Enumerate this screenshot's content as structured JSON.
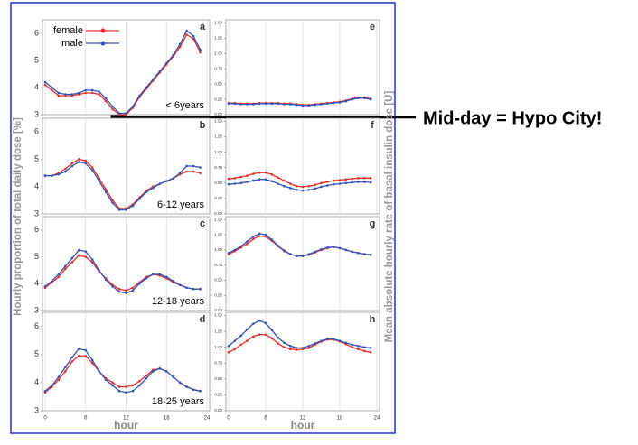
{
  "chart_data": [
    {
      "type": "line",
      "label": "a",
      "subtitle": "< 6years",
      "ylabel": "Hourly proportion of total daily dose [%]",
      "legend": "upper left",
      "x": [
        0,
        1,
        2,
        3,
        4,
        5,
        6,
        7,
        8,
        9,
        10,
        11,
        12,
        13,
        14,
        15,
        16,
        17,
        18,
        19,
        20,
        21,
        22,
        23
      ],
      "xlim": [
        0,
        24
      ],
      "xticks": [
        0,
        6,
        12,
        18,
        24
      ],
      "ylim": [
        3,
        6.5
      ],
      "yticks": [
        3,
        4,
        5,
        6
      ],
      "series": [
        {
          "name": "female",
          "color": "#e0312e",
          "values": [
            4.1,
            3.9,
            3.7,
            3.7,
            3.7,
            3.75,
            3.8,
            3.8,
            3.75,
            3.5,
            3.2,
            3.0,
            3.0,
            3.25,
            3.65,
            3.95,
            4.25,
            4.55,
            4.85,
            5.15,
            5.5,
            5.95,
            5.8,
            5.3
          ]
        },
        {
          "name": "male",
          "color": "#3454b4",
          "values": [
            4.2,
            4.0,
            3.8,
            3.75,
            3.75,
            3.8,
            3.9,
            3.9,
            3.85,
            3.6,
            3.3,
            3.05,
            3.05,
            3.3,
            3.7,
            4.0,
            4.3,
            4.6,
            4.9,
            5.2,
            5.6,
            6.1,
            5.9,
            5.4
          ]
        }
      ]
    },
    {
      "type": "line",
      "label": "b",
      "subtitle": "6-12 years",
      "x": [
        0,
        1,
        2,
        3,
        4,
        5,
        6,
        7,
        8,
        9,
        10,
        11,
        12,
        13,
        14,
        15,
        16,
        17,
        18,
        19,
        20,
        21,
        22,
        23
      ],
      "xlim": [
        0,
        24
      ],
      "xticks": [
        0,
        6,
        12,
        18,
        24
      ],
      "ylim": [
        3,
        6.5
      ],
      "yticks": [
        3,
        4,
        5,
        6
      ],
      "series": [
        {
          "color": "#e0312e",
          "values": [
            4.4,
            4.4,
            4.5,
            4.65,
            4.85,
            5.0,
            4.95,
            4.7,
            4.3,
            3.9,
            3.5,
            3.2,
            3.2,
            3.35,
            3.6,
            3.85,
            4.0,
            4.1,
            4.2,
            4.3,
            4.45,
            4.55,
            4.55,
            4.5
          ]
        },
        {
          "color": "#3454b4",
          "values": [
            4.4,
            4.4,
            4.45,
            4.55,
            4.75,
            4.9,
            4.85,
            4.6,
            4.2,
            3.8,
            3.4,
            3.15,
            3.15,
            3.3,
            3.55,
            3.8,
            3.95,
            4.1,
            4.2,
            4.3,
            4.5,
            4.75,
            4.75,
            4.7
          ]
        }
      ]
    },
    {
      "type": "line",
      "label": "c",
      "subtitle": "12-18 years",
      "x": [
        0,
        1,
        2,
        3,
        4,
        5,
        6,
        7,
        8,
        9,
        10,
        11,
        12,
        13,
        14,
        15,
        16,
        17,
        18,
        19,
        20,
        21,
        22,
        23
      ],
      "xlim": [
        0,
        24
      ],
      "xticks": [
        0,
        6,
        12,
        18,
        24
      ],
      "ylim": [
        3,
        6.5
      ],
      "yticks": [
        3,
        4,
        5,
        6
      ],
      "series": [
        {
          "color": "#e0312e",
          "values": [
            3.85,
            4.05,
            4.25,
            4.55,
            4.8,
            5.05,
            5.0,
            4.8,
            4.45,
            4.2,
            3.95,
            3.8,
            3.75,
            3.85,
            4.05,
            4.25,
            4.35,
            4.3,
            4.2,
            4.05,
            3.95,
            3.85,
            3.8,
            3.8
          ]
        },
        {
          "color": "#3454b4",
          "values": [
            3.9,
            4.1,
            4.35,
            4.65,
            4.95,
            5.25,
            5.2,
            4.9,
            4.5,
            4.15,
            3.9,
            3.7,
            3.65,
            3.75,
            4.0,
            4.2,
            4.35,
            4.35,
            4.25,
            4.1,
            3.95,
            3.85,
            3.8,
            3.8
          ]
        }
      ]
    },
    {
      "type": "line",
      "label": "d",
      "subtitle": "18-25 years",
      "xlabel": "hour",
      "x": [
        0,
        1,
        2,
        3,
        4,
        5,
        6,
        7,
        8,
        9,
        10,
        11,
        12,
        13,
        14,
        15,
        16,
        17,
        18,
        19,
        20,
        21,
        22,
        23
      ],
      "xlim": [
        0,
        24
      ],
      "xticks": [
        0,
        6,
        12,
        18,
        24
      ],
      "ylim": [
        3,
        6.5
      ],
      "yticks": [
        3,
        4,
        5,
        6
      ],
      "series": [
        {
          "color": "#e0312e",
          "values": [
            3.65,
            3.85,
            4.1,
            4.4,
            4.75,
            4.95,
            4.95,
            4.7,
            4.4,
            4.15,
            4.0,
            3.85,
            3.85,
            3.9,
            4.05,
            4.25,
            4.45,
            4.5,
            4.4,
            4.2,
            4.0,
            3.85,
            3.75,
            3.7
          ]
        },
        {
          "color": "#3454b4",
          "values": [
            3.7,
            3.9,
            4.2,
            4.55,
            4.9,
            5.2,
            5.15,
            4.8,
            4.4,
            4.1,
            3.9,
            3.7,
            3.65,
            3.7,
            3.9,
            4.15,
            4.4,
            4.5,
            4.4,
            4.2,
            4.0,
            3.85,
            3.75,
            3.7
          ]
        }
      ]
    },
    {
      "type": "line",
      "label": "e",
      "ylabel": "Mean absolute hourly rate of basal insulin dose [U]",
      "x": [
        0,
        1,
        2,
        3,
        4,
        5,
        6,
        7,
        8,
        9,
        10,
        11,
        12,
        13,
        14,
        15,
        16,
        17,
        18,
        19,
        20,
        21,
        22,
        23
      ],
      "xlim": [
        0,
        24
      ],
      "xticks": [
        0,
        6,
        12,
        18,
        24
      ],
      "ylim": [
        0,
        1.55
      ],
      "yticks": [
        {
          "value": 0,
          "label": "0.00"
        },
        {
          "value": 0.25,
          "label": "0.25"
        },
        {
          "value": 0.5,
          "label": "0.50"
        },
        {
          "value": 0.75,
          "label": "0.75"
        },
        {
          "value": 1,
          "label": "1.00"
        },
        {
          "value": 1.25,
          "label": "1.25"
        },
        {
          "value": 1.5,
          "label": "1.50"
        }
      ],
      "series": [
        {
          "color": "#e0312e",
          "values": [
            0.19,
            0.19,
            0.18,
            0.18,
            0.18,
            0.19,
            0.19,
            0.19,
            0.19,
            0.18,
            0.18,
            0.17,
            0.16,
            0.16,
            0.17,
            0.18,
            0.19,
            0.2,
            0.21,
            0.23,
            0.26,
            0.28,
            0.28,
            0.26
          ]
        },
        {
          "color": "#3454b4",
          "values": [
            0.18,
            0.18,
            0.17,
            0.17,
            0.17,
            0.18,
            0.18,
            0.18,
            0.18,
            0.17,
            0.17,
            0.16,
            0.15,
            0.15,
            0.16,
            0.17,
            0.18,
            0.19,
            0.2,
            0.22,
            0.25,
            0.27,
            0.27,
            0.25
          ]
        }
      ]
    },
    {
      "type": "line",
      "label": "f",
      "x": [
        0,
        1,
        2,
        3,
        4,
        5,
        6,
        7,
        8,
        9,
        10,
        11,
        12,
        13,
        14,
        15,
        16,
        17,
        18,
        19,
        20,
        21,
        22,
        23
      ],
      "xlim": [
        0,
        24
      ],
      "xticks": [
        0,
        6,
        12,
        18,
        24
      ],
      "ylim": [
        0,
        1.55
      ],
      "yticks": [
        {
          "value": 0,
          "label": "0.00"
        },
        {
          "value": 0.25,
          "label": "0.25"
        },
        {
          "value": 0.5,
          "label": "0.50"
        },
        {
          "value": 0.75,
          "label": "0.75"
        },
        {
          "value": 1,
          "label": "1.00"
        },
        {
          "value": 1.25,
          "label": "1.25"
        },
        {
          "value": 1.5,
          "label": "1.50"
        }
      ],
      "series": [
        {
          "color": "#e0312e",
          "values": [
            0.57,
            0.58,
            0.6,
            0.62,
            0.65,
            0.67,
            0.67,
            0.64,
            0.59,
            0.54,
            0.49,
            0.45,
            0.44,
            0.45,
            0.47,
            0.5,
            0.52,
            0.54,
            0.55,
            0.56,
            0.57,
            0.58,
            0.58,
            0.58
          ]
        },
        {
          "color": "#3454b4",
          "values": [
            0.48,
            0.49,
            0.5,
            0.52,
            0.54,
            0.56,
            0.56,
            0.53,
            0.49,
            0.45,
            0.42,
            0.39,
            0.38,
            0.39,
            0.41,
            0.44,
            0.46,
            0.48,
            0.49,
            0.5,
            0.51,
            0.52,
            0.52,
            0.51
          ]
        }
      ]
    },
    {
      "type": "line",
      "label": "g",
      "x": [
        0,
        1,
        2,
        3,
        4,
        5,
        6,
        7,
        8,
        9,
        10,
        11,
        12,
        13,
        14,
        15,
        16,
        17,
        18,
        19,
        20,
        21,
        22,
        23
      ],
      "xlim": [
        0,
        24
      ],
      "xticks": [
        0,
        6,
        12,
        18,
        24
      ],
      "ylim": [
        0,
        1.55
      ],
      "yticks": [
        {
          "value": 0,
          "label": "0.00"
        },
        {
          "value": 0.25,
          "label": "0.25"
        },
        {
          "value": 0.5,
          "label": "0.50"
        },
        {
          "value": 0.75,
          "label": "0.75"
        },
        {
          "value": 1,
          "label": "1.00"
        },
        {
          "value": 1.25,
          "label": "1.25"
        },
        {
          "value": 1.5,
          "label": "1.50"
        }
      ],
      "series": [
        {
          "color": "#e0312e",
          "values": [
            0.93,
            0.98,
            1.04,
            1.1,
            1.18,
            1.23,
            1.22,
            1.15,
            1.06,
            0.98,
            0.93,
            0.9,
            0.9,
            0.92,
            0.96,
            1.0,
            1.03,
            1.05,
            1.03,
            1.0,
            0.97,
            0.95,
            0.93,
            0.92
          ]
        },
        {
          "color": "#3454b4",
          "values": [
            0.95,
            1.0,
            1.06,
            1.14,
            1.22,
            1.27,
            1.25,
            1.17,
            1.07,
            0.99,
            0.93,
            0.9,
            0.9,
            0.93,
            0.97,
            1.01,
            1.04,
            1.05,
            1.03,
            1.0,
            0.97,
            0.95,
            0.93,
            0.92
          ]
        }
      ]
    },
    {
      "type": "line",
      "label": "h",
      "xlabel": "hour",
      "x": [
        0,
        1,
        2,
        3,
        4,
        5,
        6,
        7,
        8,
        9,
        10,
        11,
        12,
        13,
        14,
        15,
        16,
        17,
        18,
        19,
        20,
        21,
        22,
        23
      ],
      "xlim": [
        0,
        24
      ],
      "xticks": [
        0,
        6,
        12,
        18,
        24
      ],
      "ylim": [
        0,
        1.55
      ],
      "yticks": [
        {
          "value": 0,
          "label": "0.00"
        },
        {
          "value": 0.25,
          "label": "0.25"
        },
        {
          "value": 0.5,
          "label": "0.50"
        },
        {
          "value": 0.75,
          "label": "0.75"
        },
        {
          "value": 1,
          "label": "1.00"
        },
        {
          "value": 1.25,
          "label": "1.25"
        },
        {
          "value": 1.5,
          "label": "1.50"
        }
      ],
      "series": [
        {
          "color": "#e0312e",
          "values": [
            0.92,
            0.97,
            1.04,
            1.1,
            1.17,
            1.2,
            1.2,
            1.14,
            1.06,
            1.0,
            0.97,
            0.96,
            0.97,
            0.99,
            1.04,
            1.09,
            1.12,
            1.12,
            1.09,
            1.05,
            1.0,
            0.97,
            0.94,
            0.92
          ]
        },
        {
          "color": "#3454b4",
          "values": [
            1.02,
            1.1,
            1.18,
            1.28,
            1.37,
            1.42,
            1.38,
            1.27,
            1.15,
            1.07,
            1.02,
            0.99,
            0.99,
            1.02,
            1.06,
            1.1,
            1.13,
            1.13,
            1.1,
            1.07,
            1.04,
            1.02,
            1.0,
            0.99
          ]
        }
      ]
    }
  ],
  "annotation": "Mid-day = Hypo City!"
}
